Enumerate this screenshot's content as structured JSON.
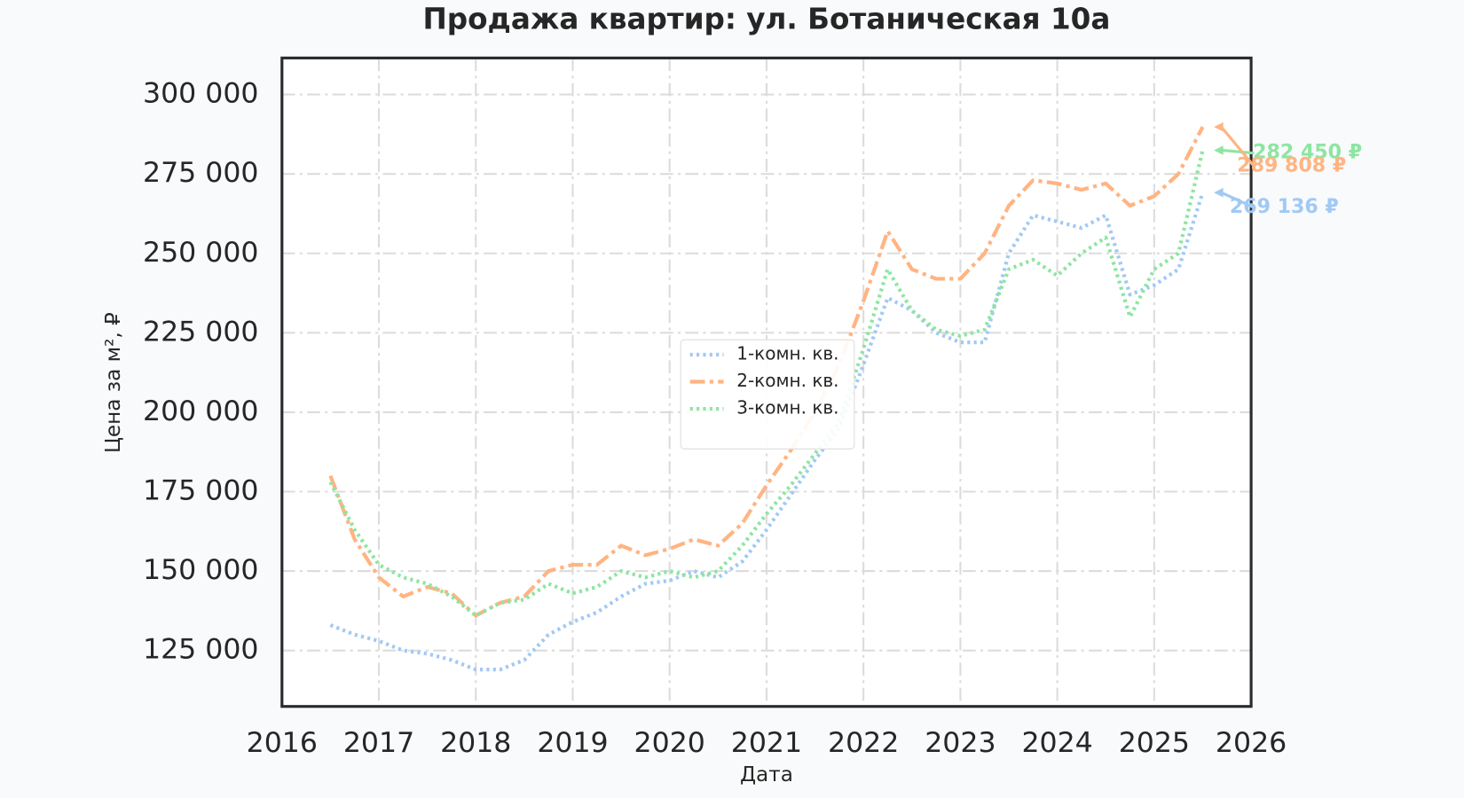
{
  "chart_data": {
    "type": "line",
    "title": "Продажа квартир: ул. Ботаническая 10а",
    "xlabel": "Дата",
    "ylabel": "Цена за м², ₽",
    "x": [
      2016.5,
      2016.75,
      2017,
      2017.25,
      2017.5,
      2017.75,
      2018,
      2018.25,
      2018.5,
      2018.75,
      2019,
      2019.25,
      2019.5,
      2019.75,
      2020,
      2020.25,
      2020.5,
      2020.75,
      2021,
      2021.25,
      2021.5,
      2021.75,
      2022,
      2022.25,
      2022.5,
      2022.75,
      2023,
      2023.25,
      2023.5,
      2023.75,
      2024,
      2024.25,
      2024.5,
      2024.75,
      2025,
      2025.25,
      2025.5
    ],
    "series": [
      {
        "name": "1-комн. кв.",
        "color": "#a1c9f4",
        "dash": "dot",
        "values": [
          133000,
          130000,
          128000,
          125000,
          124000,
          122000,
          119000,
          119000,
          122000,
          130000,
          134000,
          137000,
          142000,
          146000,
          147000,
          150000,
          148000,
          153000,
          163000,
          174000,
          185000,
          195000,
          215000,
          236000,
          232000,
          225000,
          222000,
          222000,
          250000,
          262000,
          260000,
          258000,
          262000,
          237000,
          240000,
          245000,
          269136
        ]
      },
      {
        "name": "2-комн. кв.",
        "color": "#ffb482",
        "dash": "dashdot",
        "values": [
          180000,
          160000,
          148000,
          142000,
          145000,
          143000,
          136000,
          140000,
          142000,
          150000,
          152000,
          152000,
          158000,
          155000,
          157000,
          160000,
          158000,
          165000,
          177000,
          188000,
          200000,
          215000,
          235000,
          257000,
          245000,
          242000,
          242000,
          250000,
          265000,
          273000,
          272000,
          270000,
          272000,
          265000,
          268000,
          275000,
          289808
        ]
      },
      {
        "name": "3-комн. кв.",
        "color": "#8de5a1",
        "dash": "dot",
        "values": [
          178000,
          163000,
          152000,
          148000,
          146000,
          142000,
          136000,
          140000,
          141000,
          146000,
          143000,
          145000,
          150000,
          148000,
          150000,
          148000,
          150000,
          158000,
          168000,
          177000,
          187000,
          197000,
          220000,
          245000,
          232000,
          226000,
          224000,
          226000,
          245000,
          248000,
          243000,
          250000,
          255000,
          230000,
          245000,
          250000,
          282450
        ]
      }
    ],
    "annotations": [
      {
        "text": "282 450 ₽",
        "x": 2025.5,
        "y": 282450,
        "color": "#8de5a1"
      },
      {
        "text": "289 808 ₽",
        "x": 2025.5,
        "y": 289808,
        "color": "#ffb482"
      },
      {
        "text": "269 136 ₽",
        "x": 2025.5,
        "y": 269136,
        "color": "#a1c9f4"
      }
    ],
    "xlim": [
      2016,
      2026
    ],
    "xticks": [
      2016,
      2017,
      2018,
      2019,
      2020,
      2021,
      2022,
      2023,
      2024,
      2025,
      2026
    ],
    "ylim": [
      107400,
      311500
    ],
    "yticks": [
      {
        "value": 125000,
        "label": "125 000"
      },
      {
        "value": 150000,
        "label": "150 000"
      },
      {
        "value": 175000,
        "label": "175 000"
      },
      {
        "value": 200000,
        "label": "200 000"
      },
      {
        "value": 225000,
        "label": "225 000"
      },
      {
        "value": 250000,
        "label": "250 000"
      },
      {
        "value": 275000,
        "label": "275 000"
      },
      {
        "value": 300000,
        "label": "300 000"
      }
    ],
    "grid": true,
    "legend": "center"
  }
}
